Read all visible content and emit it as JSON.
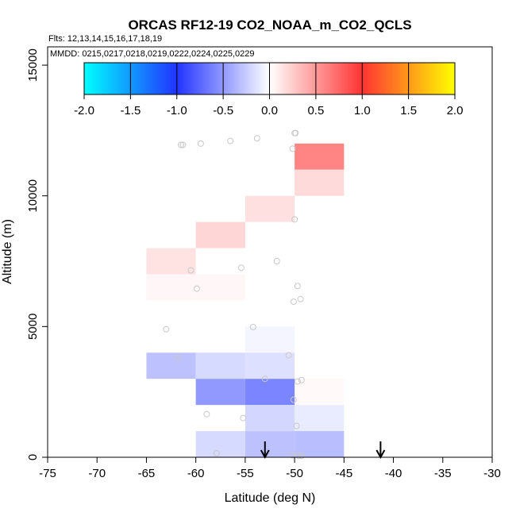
{
  "chart_data": {
    "type": "heatmap",
    "title": "ORCAS RF12-19 CO2_NOAA_m_CO2_QCLS",
    "flights_label": "Flts: 12,13,14,15,16,17,18,19",
    "dates_label": "MMDD: 0215,0217,0218,0219,0222,0224,0225,0229",
    "xlabel": "Latitude (deg N)",
    "ylabel": "Altitude (m)",
    "xlim": [
      -75,
      -30
    ],
    "ylim": [
      0,
      16000
    ],
    "x_ticks": [
      -75,
      -70,
      -65,
      -60,
      -55,
      -50,
      -45,
      -40,
      -35,
      -30
    ],
    "x_tick_labels": [
      "-75",
      "-70",
      "-65",
      "-60",
      "-55",
      "-50",
      "-45",
      "-40",
      "-35",
      "-30"
    ],
    "y_ticks": [
      0,
      5000,
      10000,
      15000
    ],
    "y_tick_labels": [
      "0",
      "5000",
      "10000",
      "15000"
    ],
    "colorbar": {
      "range": [
        -2.0,
        2.0
      ],
      "ticks": [
        -2.0,
        -1.5,
        -1.0,
        -0.5,
        0.0,
        0.5,
        1.0,
        1.5,
        2.0
      ],
      "tick_labels": [
        "-2.0",
        "-1.5",
        "-1.0",
        "-0.5",
        "0.0",
        "0.5",
        "1.0",
        "1.5",
        "2.0"
      ]
    },
    "cells": [
      {
        "lat": [
          -50,
          -45
        ],
        "alt": [
          11000,
          12000
        ],
        "value": 0.6
      },
      {
        "lat": [
          -50,
          -45
        ],
        "alt": [
          10000,
          11000
        ],
        "value": 0.18
      },
      {
        "lat": [
          -55,
          -50
        ],
        "alt": [
          9000,
          10000
        ],
        "value": 0.15
      },
      {
        "lat": [
          -60,
          -55
        ],
        "alt": [
          8000,
          9000
        ],
        "value": 0.2
      },
      {
        "lat": [
          -65,
          -60
        ],
        "alt": [
          7000,
          8000
        ],
        "value": 0.14
      },
      {
        "lat": [
          -65,
          -60
        ],
        "alt": [
          6000,
          7000
        ],
        "value": 0.04
      },
      {
        "lat": [
          -60,
          -55
        ],
        "alt": [
          6000,
          7000
        ],
        "value": 0.04
      },
      {
        "lat": [
          -55,
          -50
        ],
        "alt": [
          4000,
          5000
        ],
        "value": -0.05
      },
      {
        "lat": [
          -65,
          -60
        ],
        "alt": [
          3000,
          4000
        ],
        "value": -0.3
      },
      {
        "lat": [
          -60,
          -55
        ],
        "alt": [
          3000,
          4000
        ],
        "value": -0.18
      },
      {
        "lat": [
          -55,
          -50
        ],
        "alt": [
          3000,
          4000
        ],
        "value": -0.15
      },
      {
        "lat": [
          -50,
          -45
        ],
        "alt": [
          2000,
          3000
        ],
        "value": 0.03
      },
      {
        "lat": [
          -60,
          -55
        ],
        "alt": [
          2000,
          3000
        ],
        "value": -0.5
      },
      {
        "lat": [
          -55,
          -50
        ],
        "alt": [
          2000,
          3000
        ],
        "value": -0.6
      },
      {
        "lat": [
          -55,
          -50
        ],
        "alt": [
          1000,
          2000
        ],
        "value": -0.2
      },
      {
        "lat": [
          -50,
          -45
        ],
        "alt": [
          1000,
          2000
        ],
        "value": -0.1
      },
      {
        "lat": [
          -60,
          -55
        ],
        "alt": [
          0,
          1000
        ],
        "value": -0.18
      },
      {
        "lat": [
          -55,
          -50
        ],
        "alt": [
          0,
          1000
        ],
        "value": -0.3
      },
      {
        "lat": [
          -50,
          -45
        ],
        "alt": [
          0,
          1000
        ],
        "value": -0.32
      }
    ],
    "sample_points": [
      {
        "lat": -50,
        "alt": 12400
      },
      {
        "lat": -49.9,
        "alt": 12400
      },
      {
        "lat": -50.2,
        "alt": 11800
      },
      {
        "lat": -53.8,
        "alt": 12200
      },
      {
        "lat": -56.5,
        "alt": 12100
      },
      {
        "lat": -59.5,
        "alt": 12000
      },
      {
        "lat": -61.3,
        "alt": 11950
      },
      {
        "lat": -61.5,
        "alt": 11950
      },
      {
        "lat": -50,
        "alt": 9100
      },
      {
        "lat": -51.8,
        "alt": 7500
      },
      {
        "lat": -55.4,
        "alt": 7250
      },
      {
        "lat": -60.5,
        "alt": 7150
      },
      {
        "lat": -59.9,
        "alt": 6450
      },
      {
        "lat": -49.7,
        "alt": 6550
      },
      {
        "lat": -49.4,
        "alt": 6050
      },
      {
        "lat": -50.1,
        "alt": 5950
      },
      {
        "lat": -63,
        "alt": 4900
      },
      {
        "lat": -54.2,
        "alt": 4980
      },
      {
        "lat": -50.6,
        "alt": 3900
      },
      {
        "lat": -61.8,
        "alt": 3800
      },
      {
        "lat": -53,
        "alt": 3000
      },
      {
        "lat": -49.3,
        "alt": 2950
      },
      {
        "lat": -49.7,
        "alt": 2900
      },
      {
        "lat": -50.1,
        "alt": 2200
      },
      {
        "lat": -58.9,
        "alt": 1650
      },
      {
        "lat": -55.2,
        "alt": 1500
      },
      {
        "lat": -49.8,
        "alt": 1200
      },
      {
        "lat": -57.9,
        "alt": 150
      },
      {
        "lat": -50.2,
        "alt": 80
      },
      {
        "lat": -49.6,
        "alt": 60
      },
      {
        "lat": -49.3,
        "alt": 60
      }
    ],
    "markers": [
      {
        "lat": -53,
        "type": "arrow-down"
      },
      {
        "lat": -41.3,
        "type": "arrow-down"
      }
    ]
  }
}
